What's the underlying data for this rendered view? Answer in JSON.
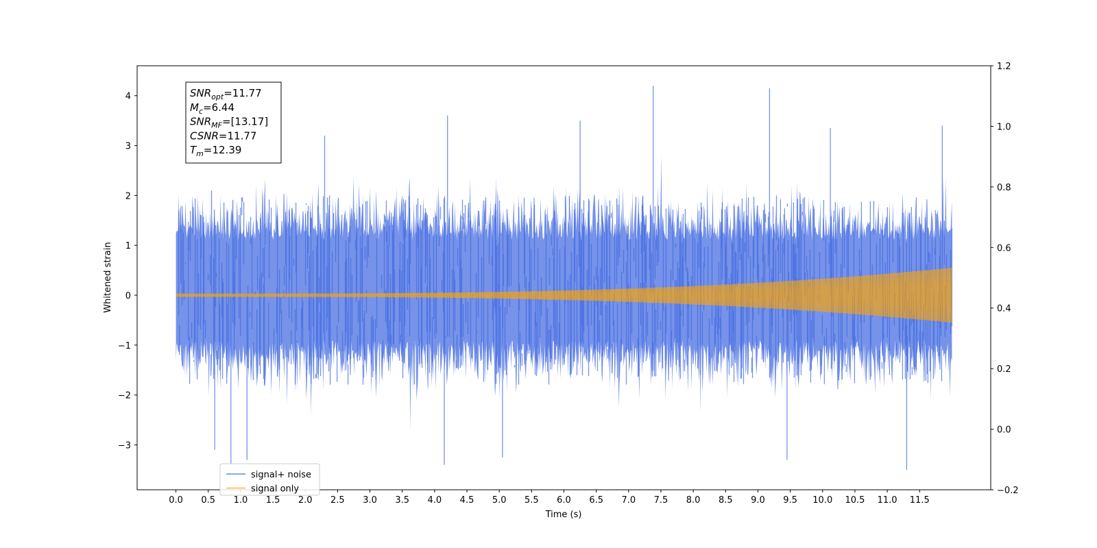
{
  "chart_data": {
    "type": "line",
    "title": "",
    "xlabel": "Time (s)",
    "ylabel": "Whitened strain",
    "x_range": [
      -0.6,
      12.6
    ],
    "ylim": [
      -3.9,
      4.6
    ],
    "y2lim": [
      -0.2,
      1.2
    ],
    "x_ticks": [
      "0.0",
      "0.5",
      "1.0",
      "1.5",
      "2.0",
      "2.5",
      "3.0",
      "3.5",
      "4.0",
      "4.5",
      "5.0",
      "5.5",
      "6.0",
      "6.5",
      "7.0",
      "7.5",
      "8.0",
      "8.5",
      "9.0",
      "9.5",
      "10.0",
      "10.5",
      "11.0",
      "11.5"
    ],
    "y_ticks": [
      "−3",
      "−2",
      "−1",
      "0",
      "1",
      "2",
      "3",
      "4"
    ],
    "y2_ticks": [
      "−0.2",
      "0.0",
      "0.2",
      "0.4",
      "0.6",
      "0.8",
      "1.0",
      "1.2"
    ],
    "grid": false,
    "legend_position": "lower-left",
    "colors": {
      "noise": "#4169e1",
      "signal": "#ffa500"
    },
    "series": [
      {
        "name": "signal+ noise",
        "color": "#4169e1",
        "x_range": [
          0.0,
          12.0
        ],
        "typical_envelope": [
          -1.8,
          2.0
        ],
        "extremes": {
          "max": [
            [
              0.55,
              2.1
            ],
            [
              2.3,
              3.2
            ],
            [
              4.2,
              3.6
            ],
            [
              6.25,
              3.5
            ],
            [
              7.38,
              4.2
            ],
            [
              9.18,
              4.15
            ],
            [
              10.12,
              3.35
            ],
            [
              11.85,
              3.4
            ]
          ],
          "min": [
            [
              0.6,
              -3.1
            ],
            [
              0.85,
              -3.4
            ],
            [
              1.1,
              -3.3
            ],
            [
              4.15,
              -3.4
            ],
            [
              5.05,
              -3.25
            ],
            [
              9.45,
              -3.3
            ],
            [
              11.3,
              -3.5
            ]
          ]
        }
      },
      {
        "name": "signal only",
        "color": "#ffa500",
        "x_range": [
          0.0,
          12.0
        ],
        "amplitude_start": 0.03,
        "amplitude_end": 0.55
      }
    ]
  },
  "annotation": {
    "lines": [
      {
        "base": "SNR",
        "sub": "opt",
        "value": "=11.77"
      },
      {
        "base": "M",
        "sub": "c",
        "value": "=6.44"
      },
      {
        "base": "SNR",
        "sub": "MF",
        "value": "=[13.17]"
      },
      {
        "base": "CSNR",
        "sub": "",
        "value": "=11.77"
      },
      {
        "base": "T",
        "sub": "m",
        "value": "=12.39"
      }
    ]
  },
  "legend": {
    "items": [
      {
        "label": "signal+ noise",
        "color": "#4169e1"
      },
      {
        "label": "signal only",
        "color": "#ffa500"
      }
    ]
  }
}
